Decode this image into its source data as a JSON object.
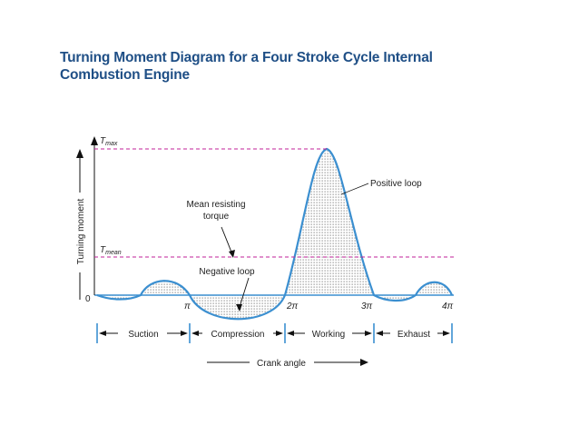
{
  "title": {
    "line1": "Turning Moment Diagram for a Four Stroke Cycle Internal",
    "line2": "Combustion Engine"
  },
  "axis": {
    "y_label": "Turning moment",
    "x_label": "Crank angle",
    "origin": "0",
    "tmax_main": "T",
    "tmax_sub": "max",
    "tmean_main": "T",
    "tmean_sub": "mean",
    "ticks": [
      "π",
      "2π",
      "3π",
      "4π"
    ]
  },
  "annotations": {
    "positive_loop": "Positive loop",
    "mean_line1": "Mean resisting",
    "mean_line2": "torque",
    "negative_loop": "Negative loop"
  },
  "strokes": [
    "Suction",
    "Compression",
    "Working",
    "Exhaust"
  ],
  "colors": {
    "curve": "#3b8fd0",
    "dashed": "#c0219a",
    "title": "#1f4f86",
    "text": "#222222"
  }
}
